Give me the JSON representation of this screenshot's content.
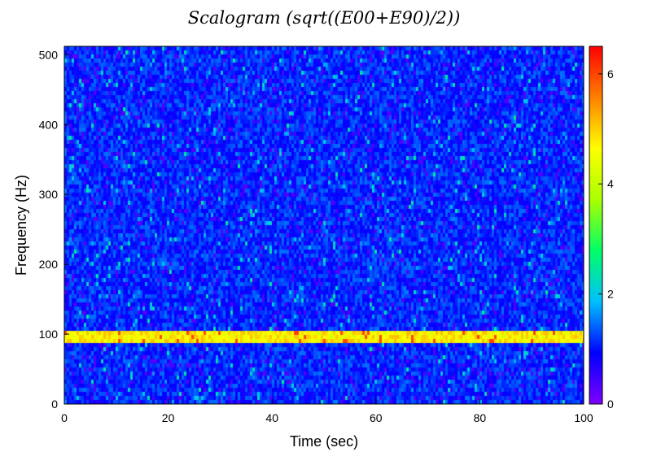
{
  "chart_data": {
    "type": "heatmap",
    "title": "Scalogram (sqrt((E00+E90)/2))",
    "xlabel": "Time (sec)",
    "ylabel": "Frequency (Hz)",
    "xlim": [
      0,
      100
    ],
    "ylim": [
      0,
      512
    ],
    "x_ticks": [
      "0",
      "20",
      "40",
      "60",
      "80",
      "100"
    ],
    "y_ticks": [
      "0",
      "100",
      "200",
      "300",
      "400",
      "500"
    ],
    "colorbar": {
      "range": [
        0,
        6.5
      ],
      "ticks": [
        "0",
        "2",
        "4",
        "6"
      ],
      "colormap": [
        "#7f00ff",
        "#0000ff",
        "#00bfff",
        "#00ff66",
        "#aaff00",
        "#ffff00",
        "#ff8000",
        "#ff0000"
      ]
    },
    "background_level": 1.1,
    "background_variation": [
      0.5,
      2.2
    ],
    "bands": [
      {
        "freq_range": [
          88,
          104
        ],
        "value": 4.7,
        "peak": 6.0
      }
    ],
    "grid": false
  }
}
